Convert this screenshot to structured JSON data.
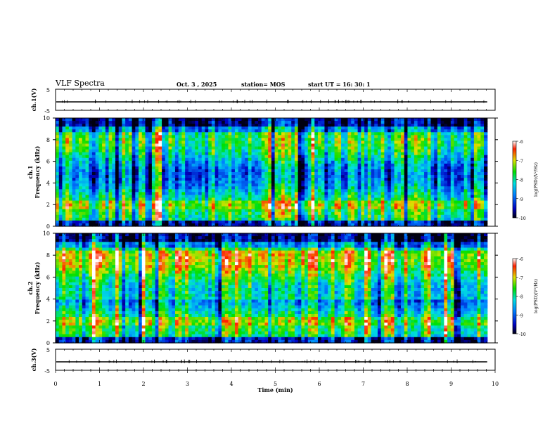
{
  "header": {
    "title": "VLF Spectra",
    "date": "Oct. 3  , 2025",
    "station": "station= MOS",
    "start": "start  UT  =   16: 30: 1"
  },
  "chart_data": [
    {
      "type": "line",
      "name": "ch1-voltage",
      "ylabel": "ch.1(V)",
      "ylim": [
        -5,
        5
      ],
      "ytick_labels": [
        "5",
        "-5"
      ],
      "xlim": [
        0,
        10
      ],
      "data_end_min": 9.82,
      "baseline": -1.0
    },
    {
      "type": "heatmap",
      "name": "ch1-spectrogram",
      "ylabel_top": "ch.1",
      "ylabel": "Frequency (kHz)",
      "ylim": [
        0,
        10
      ],
      "ytick_labels": [
        "0",
        "2",
        "4",
        "6",
        "8",
        "10"
      ],
      "xlim": [
        0,
        10
      ],
      "data_end_min": 9.82,
      "colorbar": {
        "label": "log(PSD)(V²/Hz)",
        "range": [
          -10,
          -6
        ],
        "tick_labels": [
          "-6",
          "-7",
          "-8",
          "-9",
          "-10"
        ]
      }
    },
    {
      "type": "heatmap",
      "name": "ch2-spectrogram",
      "ylabel_top": "ch.2",
      "ylabel": "Frequency (kHz)",
      "ylim": [
        0,
        10
      ],
      "ytick_labels": [
        "0",
        "2",
        "4",
        "6",
        "8",
        "10"
      ],
      "xlim": [
        0,
        10
      ],
      "data_end_min": 9.82,
      "colorbar": {
        "label": "log(PSD)(V²/Hz)",
        "range": [
          -10,
          -6
        ],
        "tick_labels": [
          "-6",
          "-7",
          "-8",
          "-9",
          "-10"
        ]
      }
    },
    {
      "type": "line",
      "name": "ch3-voltage",
      "ylabel": "ch.3(V)",
      "ylim": [
        -5,
        5
      ],
      "ytick_labels": [
        "5",
        "-5"
      ],
      "xlim": [
        0,
        10
      ],
      "data_end_min": 9.82,
      "baseline": -1.0,
      "xlabel": "Time (min)",
      "xtick_labels": [
        "0",
        "1",
        "2",
        "3",
        "4",
        "5",
        "6",
        "7",
        "8",
        "9",
        "10"
      ]
    }
  ]
}
